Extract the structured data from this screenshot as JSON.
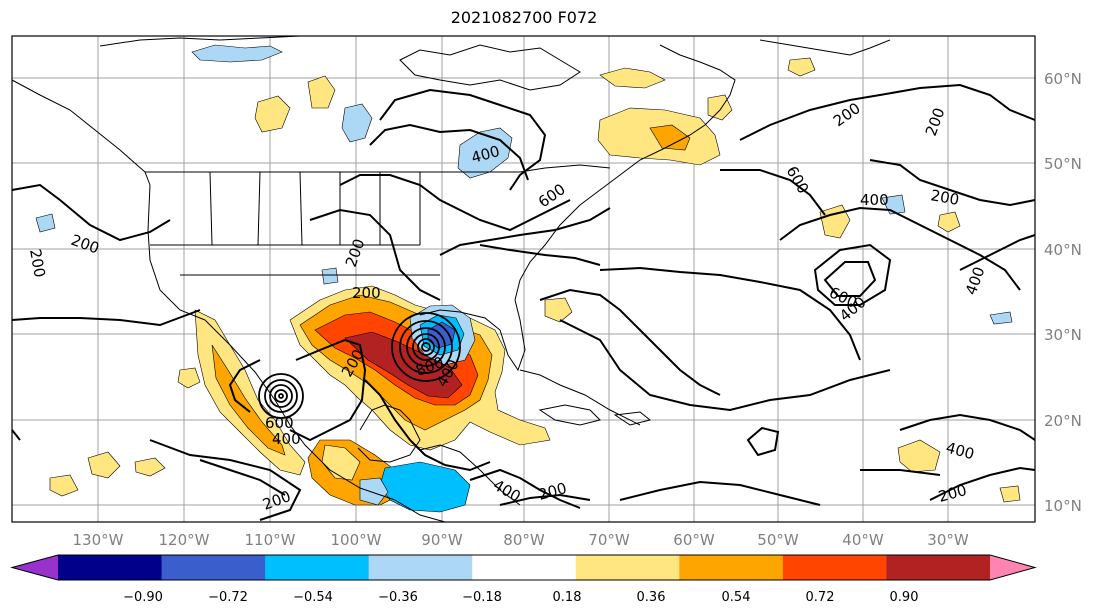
{
  "title": "2021082700 F072",
  "lat_labels": [
    "60°N",
    "50°N",
    "40°N",
    "30°N",
    "20°N",
    "10°N"
  ],
  "lon_labels": [
    "130°W",
    "120°W",
    "110°W",
    "100°W",
    "90°W",
    "80°W",
    "70°W",
    "60°W",
    "50°W",
    "40°W",
    "30°W"
  ],
  "colorbar": {
    "colors": [
      "#9932CC",
      "#00008B",
      "#3A5FCD",
      "#00BFFF",
      "#ADD8F5",
      "#FFFFFF",
      "#FFE680",
      "#FFA500",
      "#FF4500",
      "#B22222",
      "#FF85B0"
    ],
    "tick_labels": [
      "−0.90",
      "−0.72",
      "−0.54",
      "−0.36",
      "−0.18",
      "0.18",
      "0.36",
      "0.54",
      "0.72",
      "0.90"
    ]
  },
  "contour_labels": [
    "200",
    "200",
    "200",
    "200",
    "200",
    "200",
    "200",
    "200",
    "200",
    "200",
    "200",
    "400",
    "400",
    "400",
    "400",
    "400",
    "400",
    "400",
    "400",
    "600",
    "600",
    "600",
    "600",
    "800"
  ]
}
